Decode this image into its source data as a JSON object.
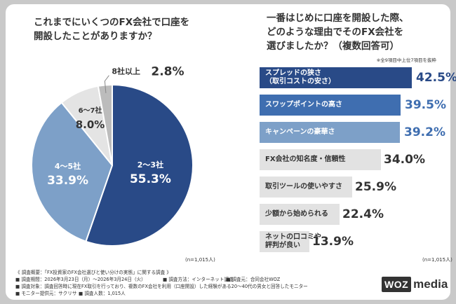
{
  "chart_data": [
    {
      "type": "pie",
      "title": "これまでにいくつのFX会社で口座を\n開設したことがありますか？",
      "sample": "(n=1,015人)",
      "slices": [
        {
          "label": "2～3社",
          "value": 55.3,
          "value_text": "55.3%",
          "color": "#294a87"
        },
        {
          "label": "4～5社",
          "value": 33.9,
          "value_text": "33.9%",
          "color": "#7da0c8"
        },
        {
          "label": "6～7社",
          "value": 8.0,
          "value_text": "8.0%",
          "color": "#e4e4e4"
        },
        {
          "label": "8社以上",
          "value": 2.8,
          "value_text": "2.8%",
          "color": "#bcbcbc"
        }
      ]
    },
    {
      "type": "bar",
      "orientation": "horizontal",
      "title": "一番はじめに口座を開設した際、\nどのような理由でそのFX会社を\n選びましたか？（複数回答可）",
      "note": "※全9項目中上位7項目を抜粋",
      "sample": "(n=1,015人)",
      "xlim": [
        0,
        50
      ],
      "categories": [
        "スプレッドの狭さ\n（取引コストの安さ）",
        "スワップポイントの高さ",
        "キャンペーンの豪華さ",
        "FX会社の知名度・信頼性",
        "取引ツールの使いやすさ",
        "少額から始められる",
        "ネットの口コミや\n評判が良い"
      ],
      "values": [
        42.5,
        39.5,
        39.2,
        34.0,
        25.9,
        22.4,
        13.9
      ],
      "value_texts": [
        "42.5%",
        "39.5%",
        "39.2%",
        "34.0%",
        "25.9%",
        "22.4%",
        "13.9%"
      ],
      "colors": [
        "#294a87",
        "#3f6eb0",
        "#7da0c8",
        "#e2e2e2",
        "#e2e2e2",
        "#e2e2e2",
        "#e2e2e2"
      ]
    }
  ],
  "footer": {
    "line1": "《 調査概要：「FX投資家のFX会社選びと使い分けの実態」に関する調査 》",
    "period": "■ 調査期間：2026年3月23日（月）～2026年3月24日（火）",
    "method": "■ 調査方法：インターネット調査",
    "org": "■ 調査元：合同会社WOZ",
    "target": "■ 調査対象：調査回答時に現在FX取引を行っており、複数のFX会社を利用（口座開設）した経験がある20～40代の男女と回答したモニター",
    "provider": "■ モニター提供元：サクリサ",
    "count": "■ 調査人数：1,015人"
  },
  "logo": {
    "woz": "WOZ",
    "media": "media"
  }
}
